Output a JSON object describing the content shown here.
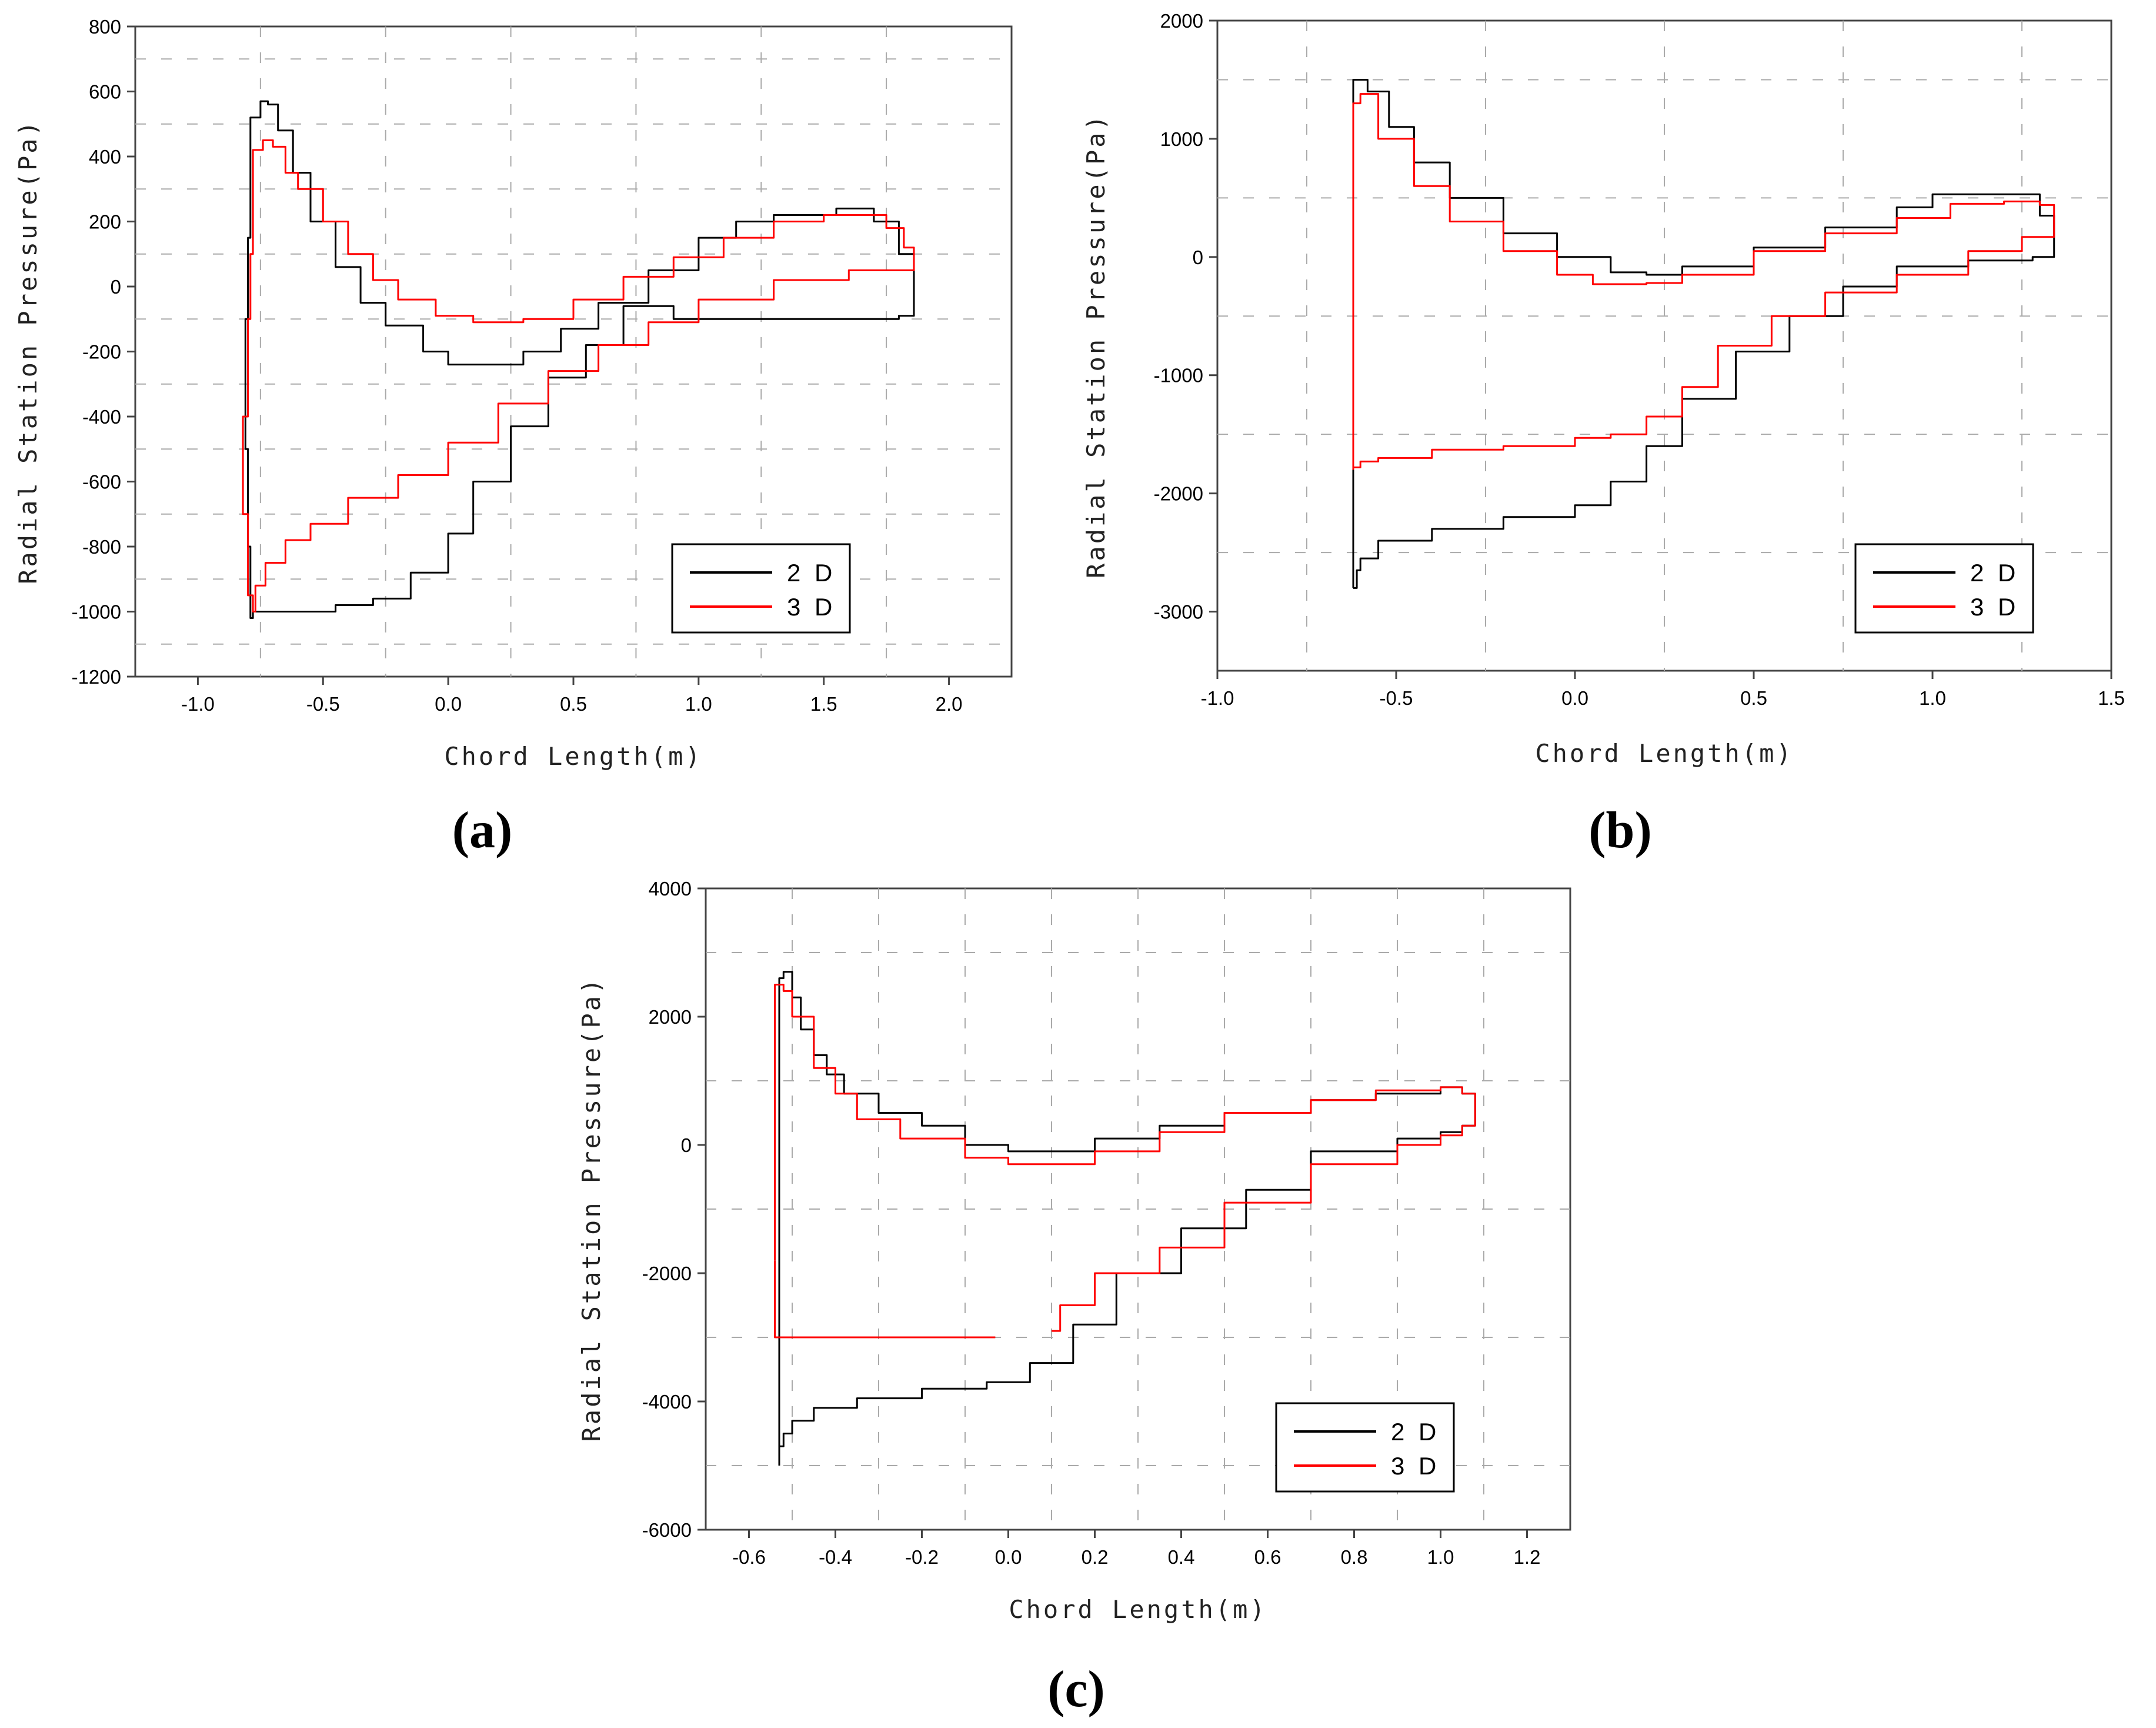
{
  "chart_data": [
    {
      "type": "line",
      "panel_label": "(a)",
      "xlabel": "Chord Length(m)",
      "ylabel": "Radial Station Pressure(Pa)",
      "xlim": [
        -1.25,
        2.25
      ],
      "ylim": [
        -1200,
        800
      ],
      "xticks": [
        -1.0,
        -0.5,
        0.0,
        0.5,
        1.0,
        1.5,
        2.0
      ],
      "xtick_labels": [
        "-1.0",
        "-0.5",
        "0.0",
        "0.5",
        "1.0",
        "1.5",
        "2.0"
      ],
      "yticks": [
        -1200,
        -1000,
        -800,
        -600,
        -400,
        -200,
        0,
        200,
        400,
        600,
        800
      ],
      "ytick_labels": [
        "-1200",
        "-1000",
        "-800",
        "-600",
        "-400",
        "-200",
        "0",
        "200",
        "400",
        "600",
        "800"
      ],
      "legend_position": "bottom-right",
      "series": [
        {
          "name": "2 D",
          "color": "#000000",
          "x": [
            -0.79,
            -0.79,
            -0.75,
            -0.72,
            -0.68,
            -0.62,
            -0.55,
            -0.45,
            -0.35,
            -0.25,
            -0.1,
            0.0,
            0.2,
            0.3,
            0.45,
            0.6,
            0.8,
            1.0,
            1.15,
            1.3,
            1.55,
            1.7,
            1.8,
            1.86,
            1.86,
            1.8,
            1.6,
            1.2,
            0.9,
            0.7,
            0.55,
            0.4,
            0.25,
            0.1,
            0.0,
            -0.15,
            -0.3,
            -0.45,
            -0.6,
            -0.77,
            -0.78,
            -0.79,
            -0.8,
            -0.81,
            -0.8,
            -0.79
          ],
          "y": [
            300,
            520,
            570,
            560,
            480,
            350,
            200,
            60,
            -50,
            -120,
            -200,
            -240,
            -240,
            -200,
            -130,
            -50,
            50,
            150,
            200,
            220,
            240,
            200,
            100,
            -20,
            -90,
            -100,
            -100,
            -100,
            -60,
            -180,
            -280,
            -430,
            -600,
            -760,
            -880,
            -960,
            -980,
            -1000,
            -1000,
            -1000,
            -1020,
            -800,
            -500,
            -100,
            150,
            300
          ]
        },
        {
          "name": "3 D",
          "color": "#ff0000",
          "x": [
            -0.78,
            -0.78,
            -0.74,
            -0.7,
            -0.65,
            -0.6,
            -0.5,
            -0.4,
            -0.3,
            -0.2,
            -0.05,
            0.1,
            0.3,
            0.5,
            0.7,
            0.9,
            1.1,
            1.3,
            1.5,
            1.65,
            1.75,
            1.82,
            1.86,
            1.86,
            1.8,
            1.6,
            1.3,
            1.0,
            0.8,
            0.6,
            0.4,
            0.2,
            0.0,
            -0.2,
            -0.4,
            -0.55,
            -0.65,
            -0.73,
            -0.77,
            -0.78,
            -0.8,
            -0.82,
            -0.8,
            -0.79,
            -0.78
          ],
          "y": [
            330,
            420,
            450,
            430,
            350,
            300,
            200,
            100,
            20,
            -40,
            -90,
            -110,
            -100,
            -40,
            30,
            90,
            150,
            200,
            220,
            220,
            180,
            120,
            70,
            50,
            50,
            20,
            -40,
            -110,
            -180,
            -260,
            -360,
            -480,
            -580,
            -650,
            -730,
            -780,
            -850,
            -920,
            -1000,
            -950,
            -700,
            -400,
            -100,
            100,
            330
          ]
        }
      ]
    },
    {
      "type": "line",
      "panel_label": "(b)",
      "xlabel": "Chord Length(m)",
      "ylabel": "Radial Station Pressure(Pa)",
      "xlim": [
        -1.0,
        1.5
      ],
      "ylim": [
        -3500,
        2000
      ],
      "xticks": [
        -1.0,
        -0.5,
        0.0,
        0.5,
        1.0,
        1.5
      ],
      "xtick_labels": [
        "-1.0",
        "-0.5",
        "0.0",
        "0.5",
        "1.0",
        "1.5"
      ],
      "yticks": [
        -3000,
        -2000,
        -1000,
        0,
        1000,
        2000
      ],
      "ytick_labels": [
        "-3000",
        "-2000",
        "-1000",
        "0",
        "1000",
        "2000"
      ],
      "legend_position": "bottom-right",
      "series": [
        {
          "name": "2 D",
          "color": "#000000",
          "x": [
            -0.62,
            -0.62,
            -0.58,
            -0.52,
            -0.45,
            -0.35,
            -0.2,
            -0.05,
            0.1,
            0.2,
            0.3,
            0.5,
            0.7,
            0.9,
            1.0,
            1.1,
            1.25,
            1.3,
            1.34,
            1.34,
            1.28,
            1.1,
            0.9,
            0.75,
            0.6,
            0.45,
            0.3,
            0.2,
            0.1,
            0.0,
            -0.2,
            -0.4,
            -0.55,
            -0.6,
            -0.61,
            -0.62
          ],
          "y": [
            -2800,
            1500,
            1400,
            1100,
            800,
            500,
            200,
            0,
            -130,
            -150,
            -80,
            80,
            250,
            420,
            530,
            530,
            530,
            350,
            200,
            0,
            -30,
            -80,
            -250,
            -500,
            -800,
            -1200,
            -1600,
            -1900,
            -2100,
            -2200,
            -2300,
            -2400,
            -2550,
            -2650,
            -2800,
            -2800
          ]
        },
        {
          "name": "3 D",
          "color": "#ff0000",
          "x": [
            -0.62,
            -0.62,
            -0.6,
            -0.55,
            -0.45,
            -0.35,
            -0.2,
            -0.05,
            0.05,
            0.2,
            0.3,
            0.5,
            0.7,
            0.9,
            1.05,
            1.2,
            1.3,
            1.34,
            1.34,
            1.25,
            1.1,
            0.9,
            0.7,
            0.55,
            0.4,
            0.3,
            0.2,
            0.1,
            0.0,
            -0.2,
            -0.4,
            -0.55,
            -0.6,
            -0.62
          ],
          "y": [
            -1800,
            1300,
            1380,
            1000,
            600,
            300,
            50,
            -150,
            -230,
            -220,
            -150,
            50,
            200,
            330,
            450,
            470,
            440,
            180,
            170,
            50,
            -150,
            -300,
            -500,
            -750,
            -1100,
            -1350,
            -1500,
            -1530,
            -1600,
            -1630,
            -1700,
            -1730,
            -1780,
            -1800
          ]
        }
      ]
    },
    {
      "type": "line",
      "panel_label": "(c)",
      "xlabel": "Chord Length(m)",
      "ylabel": "Radial Station Pressure(Pa)",
      "xlim": [
        -0.7,
        1.3
      ],
      "ylim": [
        -6000,
        4000
      ],
      "xticks": [
        -0.6,
        -0.4,
        -0.2,
        0.0,
        0.2,
        0.4,
        0.6,
        0.8,
        1.0,
        1.2
      ],
      "xtick_labels": [
        "-0.6",
        "-0.4",
        "-0.2",
        "0.0",
        "0.2",
        "0.4",
        "0.6",
        "0.8",
        "1.0",
        "1.2"
      ],
      "yticks": [
        -6000,
        -4000,
        -2000,
        0,
        2000,
        4000
      ],
      "ytick_labels": [
        "-6000",
        "-4000",
        "-2000",
        "0",
        "2000",
        "4000"
      ],
      "legend_position": "bottom-right",
      "series": [
        {
          "name": "2 D",
          "color": "#000000",
          "x": [
            -0.53,
            -0.53,
            -0.52,
            -0.5,
            -0.48,
            -0.45,
            -0.42,
            -0.38,
            -0.3,
            -0.2,
            -0.1,
            0.0,
            0.1,
            0.2,
            0.35,
            0.5,
            0.7,
            0.85,
            1.0,
            1.05,
            1.08,
            1.08,
            1.05,
            1.0,
            0.9,
            0.7,
            0.55,
            0.4,
            0.25,
            0.15,
            0.05,
            -0.05,
            -0.2,
            -0.35,
            -0.45,
            -0.5,
            -0.52,
            -0.53
          ],
          "y": [
            -5000,
            2600,
            2700,
            2300,
            1800,
            1400,
            1100,
            800,
            500,
            300,
            0,
            -100,
            -100,
            100,
            300,
            500,
            700,
            800,
            900,
            800,
            500,
            300,
            200,
            100,
            -100,
            -700,
            -1300,
            -2000,
            -2800,
            -3400,
            -3700,
            -3800,
            -3950,
            -4100,
            -4300,
            -4500,
            -4700,
            -5000
          ]
        },
        {
          "name": "3 D",
          "color": "#ff0000",
          "x": [
            -0.54,
            -0.54,
            -0.52,
            -0.5,
            -0.45,
            -0.4,
            -0.35,
            -0.25,
            -0.1,
            0.0,
            0.1,
            0.2,
            0.35,
            0.5,
            0.7,
            0.85,
            1.0,
            1.05,
            1.08,
            1.08,
            1.05,
            1.0,
            0.9,
            0.7,
            0.5,
            0.35,
            0.2,
            0.12,
            0.1
          ],
          "y": [
            -1800,
            2500,
            2400,
            2000,
            1200,
            800,
            400,
            100,
            -200,
            -300,
            -300,
            -100,
            200,
            500,
            700,
            850,
            900,
            800,
            600,
            300,
            150,
            0,
            -300,
            -900,
            -1600,
            -2000,
            -2500,
            -2900,
            -2900
          ]
        },
        {
          "name": "3 D",
          "color": "#ff0000",
          "x": [
            -0.54,
            -0.54,
            -0.03
          ],
          "y": [
            -1800,
            -3000,
            -3000
          ]
        }
      ]
    }
  ]
}
